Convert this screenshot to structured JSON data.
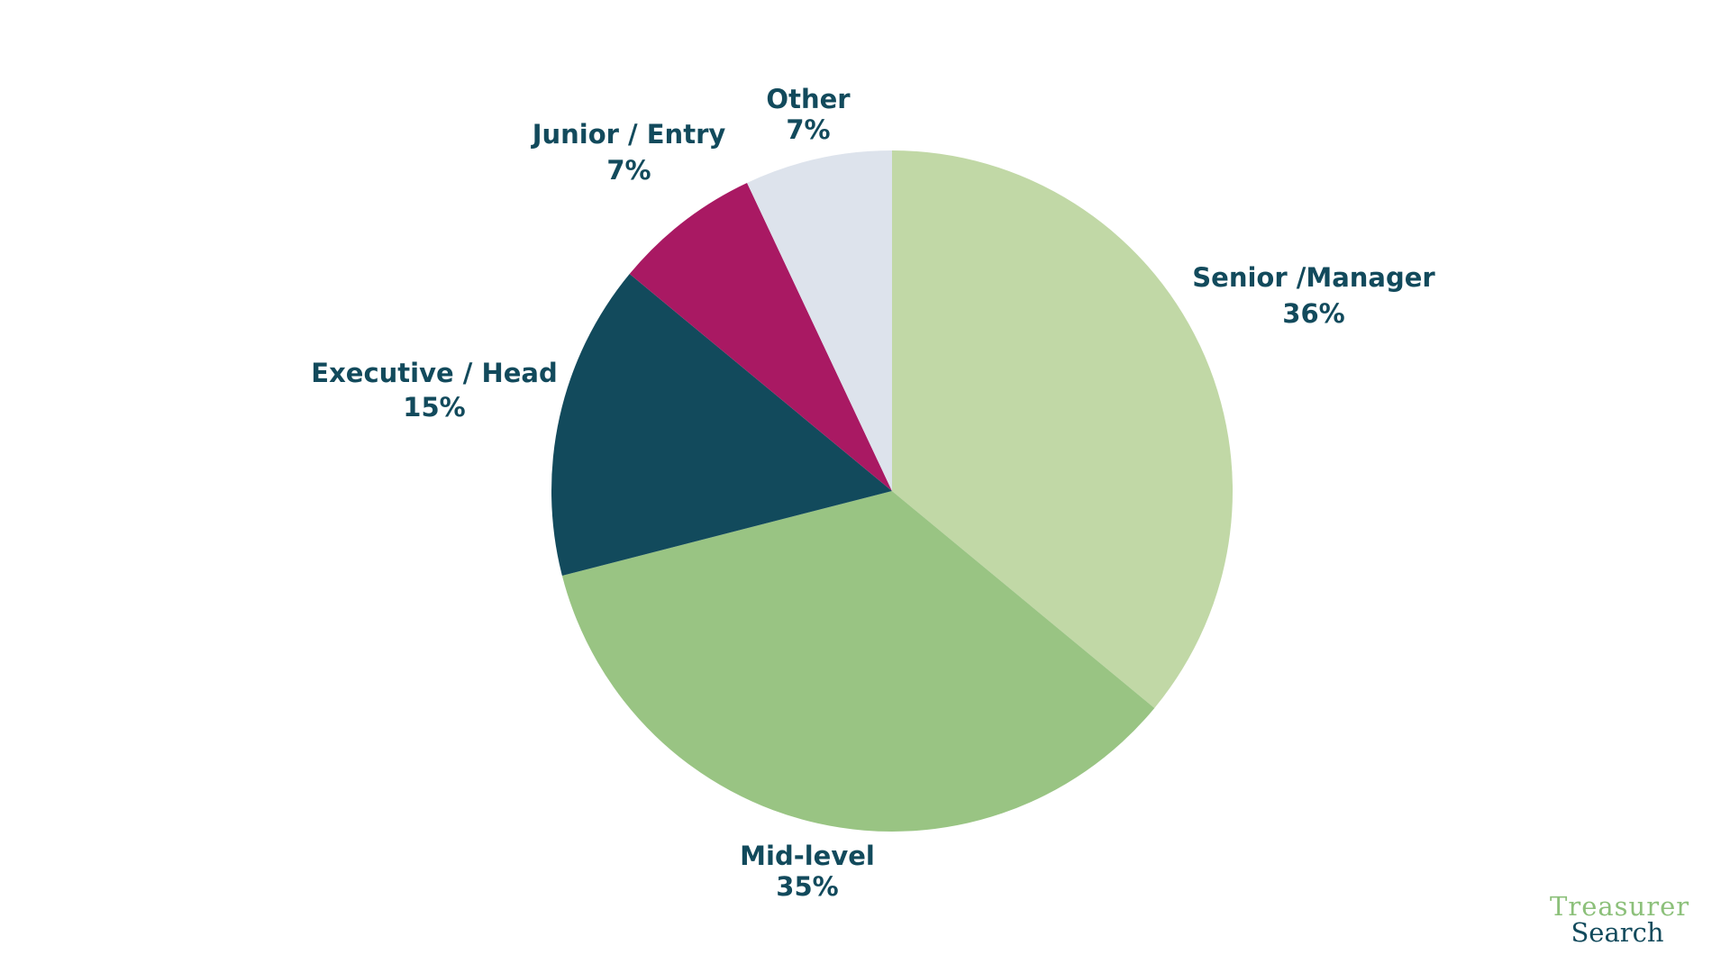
{
  "chart_data": {
    "type": "pie",
    "title": "",
    "start_angle_deg": 0,
    "direction": "clockwise",
    "slices": [
      {
        "label": "Senior /Manager",
        "value": 36,
        "display": "36%",
        "color": "#c1d8a6"
      },
      {
        "label": "Mid-level",
        "value": 35,
        "display": "35%",
        "color": "#99c483"
      },
      {
        "label": "Executive / Head",
        "value": 15,
        "display": "15%",
        "color": "#124a5c"
      },
      {
        "label": "Junior / Entry",
        "value": 7,
        "display": "7%",
        "color": "#a91963"
      },
      {
        "label": "Other",
        "value": 7,
        "display": "7%",
        "color": "#dde3ec"
      }
    ],
    "label_color": "#124a5c"
  },
  "logo": {
    "line1": "Treasurer",
    "line2": "Search",
    "line1_color": "#8cc07a",
    "line2_color": "#124a5c"
  }
}
